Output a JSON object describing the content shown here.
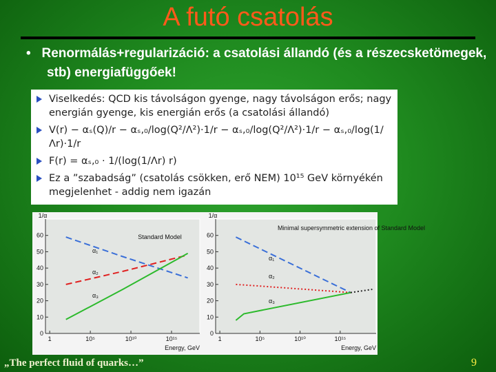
{
  "slide": {
    "title": "A futó csatolás",
    "bullet": "Renormálás+regularizáció: a csatolási állandó (és a részecsketömegek, stb) energiafüggőek!",
    "box_items": [
      "Viselkedés: QCD kis távolságon gyenge, nagy távolságon erős; nagy energián gyenge, kis energián erős (a csatolási állandó)",
      "V(r) − αₛ(Q)/r − αₛ,₀/log(Q²/Λ²)·1/r − αₛ,₀/log(Q²/Λ²)·1/r − αₛ,₀/log(1/Λr)·1/r",
      "F(r) = αₛ,₀ · 1/(log(1/Λr) r)",
      "Ez a ”szabadság” (csatolás csökken, erő NEM) 10¹⁵ GeV környékén megjelenhet - addig nem igazán"
    ],
    "footer": "„The perfect fluid of quarks…”",
    "page_number": "9"
  },
  "chart_data": [
    {
      "type": "line",
      "ylabel": "1/α",
      "xlabel": "Energy, GeV",
      "log_x": true,
      "annotations": [
        "Standard Model",
        "α₁",
        "α₂",
        "α₃"
      ],
      "x": [
        100,
        1000000000,
        100000000000000000
      ],
      "series": [
        {
          "name": "α₁",
          "color": "#3a6fd8",
          "style": "dashed",
          "values": [
            59,
            47,
            34
          ]
        },
        {
          "name": "α₂",
          "color": "#e02020",
          "style": "dashed",
          "values": [
            30,
            38,
            48
          ]
        },
        {
          "name": "α₃",
          "color": "#2cba2c",
          "style": "solid",
          "values": [
            8.5,
            27,
            49
          ]
        }
      ],
      "xlim": [
        0.3,
        3000000000000000000
      ],
      "ylim": [
        0,
        70
      ],
      "xticks": [
        1,
        {
          "value": 100000,
          "label": "10⁵"
        },
        {
          "value": 10000000000,
          "label": "10¹⁰"
        },
        {
          "value": 1000000000000000,
          "label": "10¹⁵"
        }
      ],
      "yticks": [
        0,
        10,
        20,
        30,
        40,
        50,
        60
      ]
    },
    {
      "type": "line",
      "ylabel": "1/α",
      "xlabel": "Energy, GeV",
      "log_x": true,
      "annotations": [
        "Minimal supersymmetric extension of Standard Model",
        "α₁",
        "α₂",
        "α₃"
      ],
      "x": [
        100,
        1000,
        20000000000000000,
        10000000000000000000
      ],
      "series": [
        {
          "name": "α₁",
          "color": "#3a6fd8",
          "style": "dashed",
          "values": [
            59,
            56.6,
            25,
            null
          ]
        },
        {
          "name": "α₂",
          "color": "#e02020",
          "style": "dotted",
          "values": [
            30,
            29.7,
            25,
            null
          ]
        },
        {
          "name": "α₃",
          "color": "#2cba2c",
          "style": "solid",
          "values": [
            8,
            12,
            25,
            null
          ]
        },
        {
          "name": "",
          "color": "#222222",
          "style": "dotted",
          "values": [
            null,
            null,
            25,
            27
          ]
        }
      ],
      "xlim": [
        0.3,
        30000000000000000000
      ],
      "ylim": [
        0,
        70
      ],
      "xticks": [
        1,
        {
          "value": 100000,
          "label": "10⁵"
        },
        {
          "value": 10000000000,
          "label": "10¹⁰"
        },
        {
          "value": 1000000000000000,
          "label": "10¹⁵"
        }
      ],
      "yticks": [
        0,
        10,
        20,
        30,
        40,
        50,
        60
      ]
    }
  ]
}
